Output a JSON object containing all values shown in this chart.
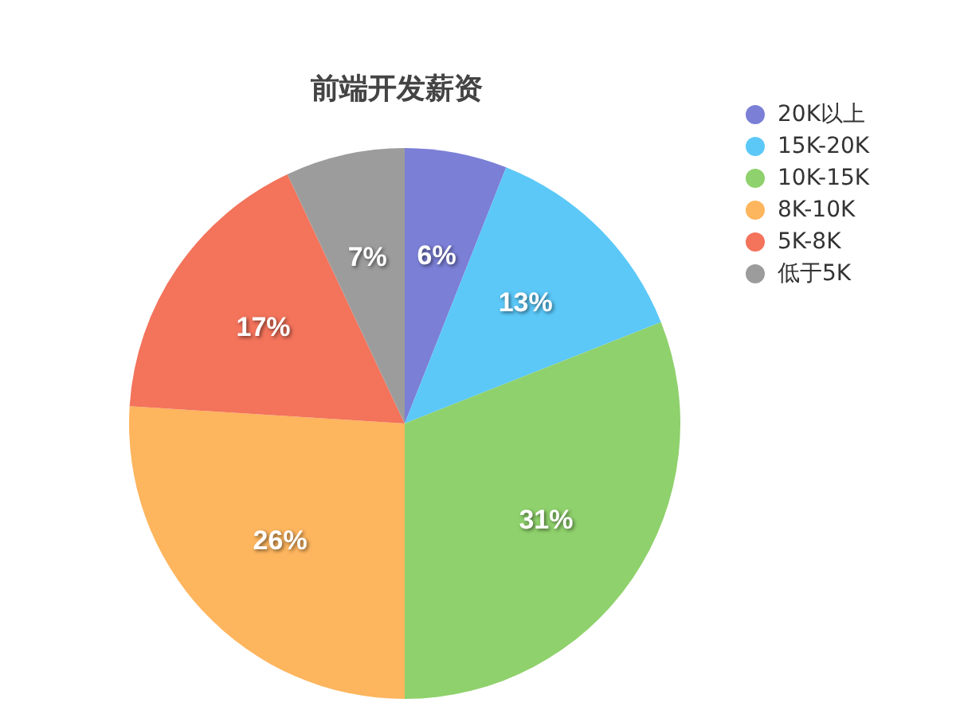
{
  "chart_data": {
    "type": "pie",
    "title": "前端开发薪资",
    "categories": [
      "20K以上",
      "15K-20K",
      "10K-15K",
      "8K-10K",
      "5K-8K",
      "低于5K"
    ],
    "values": [
      6,
      13,
      31,
      26,
      17,
      7
    ],
    "value_labels": [
      "6%",
      "13%",
      "31%",
      "26%",
      "17%",
      "7%"
    ],
    "colors": [
      "#7b7fd6",
      "#5bc8f8",
      "#8fd16c",
      "#fdb55e",
      "#f3735b",
      "#9c9c9c"
    ],
    "legend": "top right"
  }
}
